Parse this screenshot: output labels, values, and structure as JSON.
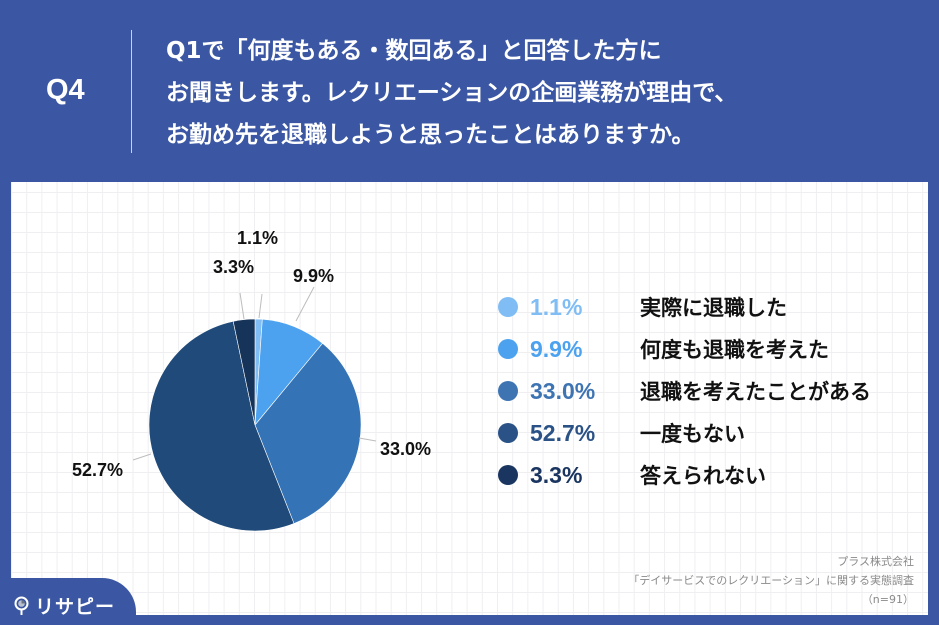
{
  "header": {
    "question_number": "Q4",
    "question_lines": [
      "Q1で「何度もある・数回ある」と回答した方に",
      "お聞きします。レクリエーションの企画業務が理由で、",
      "お勤め先を退職しようと思ったことはありますか。"
    ]
  },
  "colors": {
    "background": "#3b57a3",
    "panel": "#ffffff",
    "slice_1": "#80bdf4",
    "slice_2": "#4da2f0",
    "slice_3": "#3473b5",
    "slice_4": "#1f4a7a",
    "slice_5": "#163459"
  },
  "chart_data": {
    "type": "pie",
    "title": "Q1で「何度もある・数回ある」と回答した方にお聞きします。レクリエーションの企画業務が理由で、お勤め先を退職しようと思ったことはありますか。",
    "start_angle": "12 o'clock, clockwise",
    "categories": [
      "実際に退職した",
      "何度も退職を考えた",
      "退職を考えたことがある",
      "一度もない",
      "答えられない"
    ],
    "values": [
      1.1,
      9.9,
      33.0,
      52.7,
      3.3
    ],
    "value_labels": [
      "1.1%",
      "9.9%",
      "33.0%",
      "52.7%",
      "3.3%"
    ],
    "colors": [
      "#80bdf4",
      "#4da2f0",
      "#3473b5",
      "#1f4a7a",
      "#163459"
    ],
    "legend_position": "right",
    "sample_size": "n=91"
  },
  "legend": {
    "items": [
      {
        "pct": "1.1%",
        "label": "実際に退職した",
        "color": "#80bdf4"
      },
      {
        "pct": "9.9%",
        "label": "何度も退職を考えた",
        "color": "#4da2f0"
      },
      {
        "pct": "33.0%",
        "label": "退職を考えたことがある",
        "color": "#3473b5"
      },
      {
        "pct": "52.7%",
        "label": "一度もない",
        "color": "#2a5286"
      },
      {
        "pct": "3.3%",
        "label": "答えられない",
        "color": "#1a3560"
      }
    ]
  },
  "source": {
    "company": "プラス株式会社",
    "survey": "「デイサービスでのレクリエーション」に関する実態調査",
    "sample": "（n=91）"
  },
  "brand": {
    "name": "リサピー",
    "icon": "map-pin-icon"
  }
}
